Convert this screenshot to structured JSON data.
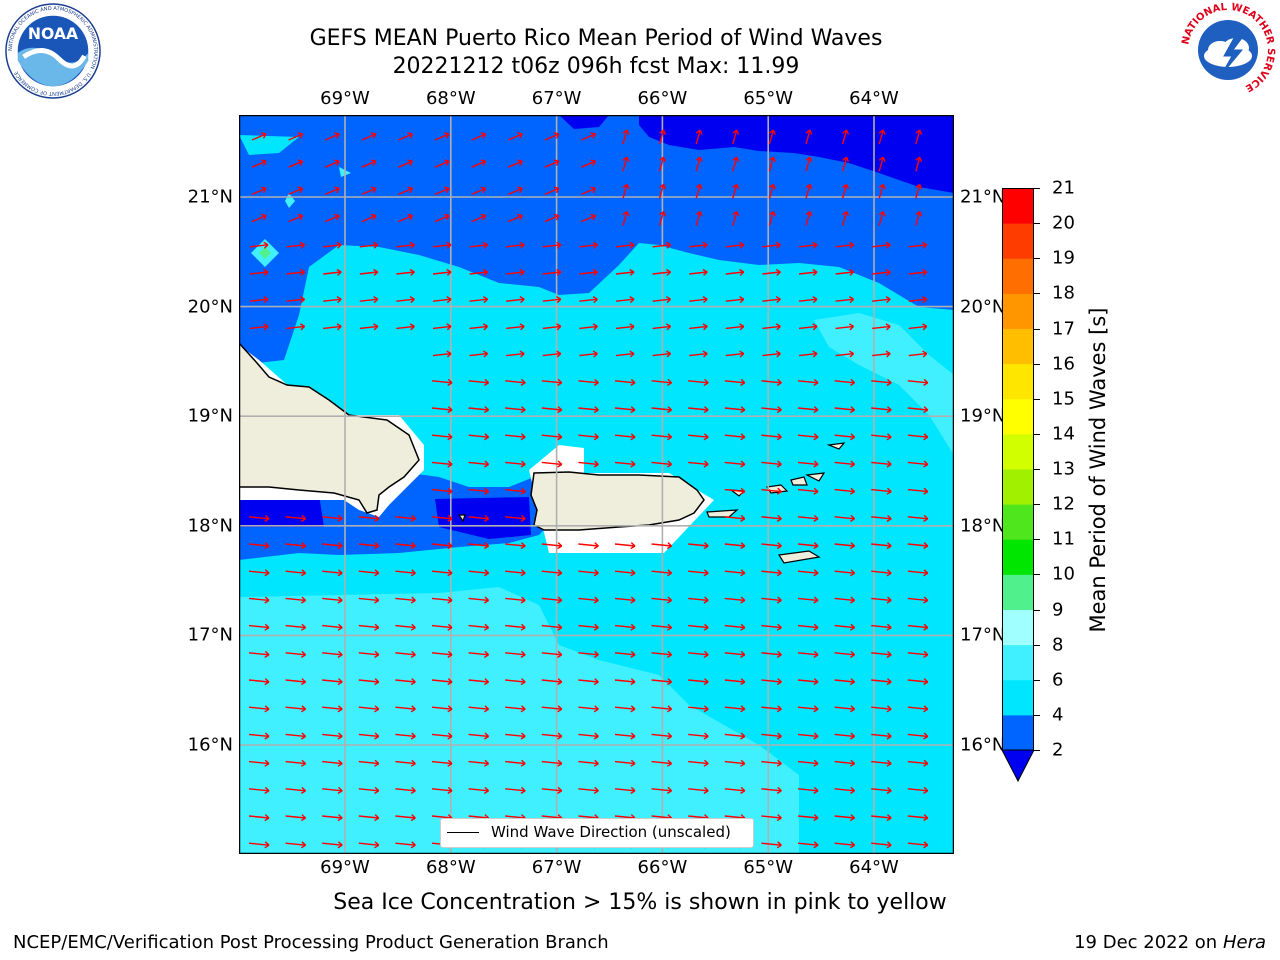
{
  "title": {
    "line1": "GEFS MEAN Puerto Rico Mean Period of Wind Waves",
    "line2": "20221212 t06z 096h fcst   Max: 11.99"
  },
  "map": {
    "lon_labels": [
      "69°W",
      "68°W",
      "67°W",
      "66°W",
      "65°W",
      "64°W"
    ],
    "lat_labels": [
      "21°N",
      "20°N",
      "19°N",
      "18°N",
      "17°N",
      "16°N"
    ],
    "legend": "Wind Wave Direction (unscaled)",
    "vector_color": "#ff0000",
    "land_color": "#efeedc"
  },
  "colorbar": {
    "label": "Mean Period of Wind Waves [s]",
    "ticks": [
      "2",
      "4",
      "6",
      "8",
      "9",
      "10",
      "11",
      "12",
      "13",
      "14",
      "15",
      "16",
      "17",
      "18",
      "19",
      "20",
      "21"
    ],
    "colors": [
      "#0064ff",
      "#00e6ff",
      "#40f0ff",
      "#a0ffff",
      "#50f08c",
      "#00e600",
      "#50e61e",
      "#a0f000",
      "#d2ff00",
      "#ffff00",
      "#ffe600",
      "#ffbe00",
      "#ff9600",
      "#ff6e00",
      "#ff3c00",
      "#ff0000"
    ],
    "under_color": "#0000f0"
  },
  "logos": {
    "noaa": "NOAA",
    "noaa_ring": "NATIONAL OCEANIC AND ATMOSPHERIC ADMINISTRATION · U.S. DEPARTMENT OF COMMERCE",
    "nws_ring": "NATIONAL WEATHER SERVICE"
  },
  "footer": {
    "note": "Sea Ice Concentration > 15% is shown in pink to yellow",
    "left": "NCEP/EMC/Verification Post Processing Product Generation Branch",
    "date": "19 Dec 2022 on",
    "machine": "Hera"
  }
}
